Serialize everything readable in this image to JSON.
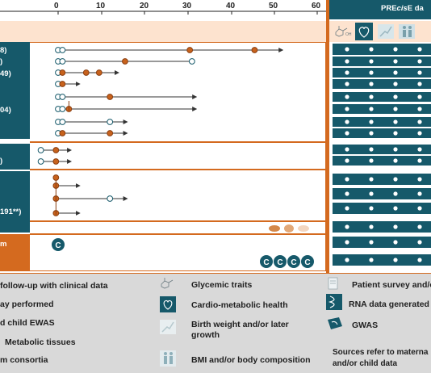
{
  "header": {
    "axis_ticks": [
      "0",
      "10",
      "20",
      "30",
      "40",
      "50",
      "60"
    ],
    "precise_title": "PRE",
    "precise_title_italic": "cis",
    "precise_title_rest": "E da"
  },
  "left_labels": [
    {
      "text": "8)"
    },
    {
      "text": ")"
    },
    {
      "text": "49)"
    },
    {
      "text": "04)"
    },
    {
      "text": ")"
    },
    {
      "text": "191**)"
    },
    {
      "text": "m"
    }
  ],
  "cohort_rows": [
    {
      "dots": [
        {
          "v": 0,
          "t": "open"
        },
        {
          "v": 1,
          "t": "open"
        },
        {
          "v": 30.5,
          "t": "filled"
        },
        {
          "v": 45.5,
          "t": "filled"
        }
      ],
      "end": 52,
      "arrow": true
    },
    {
      "dots": [
        {
          "v": 0,
          "t": "open"
        },
        {
          "v": 1,
          "t": "open"
        },
        {
          "v": 15.5,
          "t": "filled"
        },
        {
          "v": 31,
          "t": "open"
        }
      ],
      "end": 31,
      "arrow": false
    },
    {
      "dots": [
        {
          "v": 0,
          "t": "open"
        },
        {
          "v": 1,
          "t": "filled"
        },
        {
          "v": 6.5,
          "t": "filled"
        },
        {
          "v": 9.5,
          "t": "filled"
        }
      ],
      "end": 14,
      "arrow": true
    },
    {
      "dots": [
        {
          "v": 0,
          "t": "open"
        },
        {
          "v": 1,
          "t": "filled"
        }
      ],
      "end": 5,
      "arrow": true
    },
    {
      "dots": [
        {
          "v": 0,
          "t": "open"
        },
        {
          "v": 1,
          "t": "open"
        },
        {
          "v": 12,
          "t": "filled"
        }
      ],
      "end": 32,
      "arrow": true
    },
    {
      "dots": [
        {
          "v": 0,
          "t": "open"
        },
        {
          "v": 1,
          "t": "open"
        },
        {
          "v": 2.5,
          "t": "filled"
        }
      ],
      "end": 32,
      "arrow": true
    },
    {
      "dots": [
        {
          "v": 0,
          "t": "open"
        },
        {
          "v": 1,
          "t": "open"
        },
        {
          "v": 12,
          "t": "open"
        }
      ],
      "end": 16,
      "arrow": true
    },
    {
      "dots": [
        {
          "v": 0,
          "t": "open"
        },
        {
          "v": 1,
          "t": "filled"
        },
        {
          "v": 12,
          "t": "filled"
        }
      ],
      "end": 16,
      "arrow": true
    },
    {
      "dots": [
        {
          "v": -4,
          "t": "open"
        },
        {
          "v": -0.5,
          "t": "filled"
        }
      ],
      "end": 3,
      "arrow": true
    },
    {
      "dots": [
        {
          "v": -4,
          "t": "open"
        },
        {
          "v": -0.5,
          "t": "filled"
        }
      ],
      "end": 3,
      "arrow": true
    },
    {
      "dots": [
        {
          "v": -0.5,
          "t": "filled"
        }
      ],
      "end": 5,
      "arrow": true
    },
    {
      "dots": [
        {
          "v": -0.5,
          "t": "filled"
        },
        {
          "v": 12,
          "t": "open"
        }
      ],
      "end": 16,
      "arrow": true
    },
    {
      "dots": [
        {
          "v": -0.5,
          "t": "filled"
        }
      ],
      "end": 5,
      "arrow": true
    }
  ],
  "consortia_rows": [
    {
      "letters": [
        "C"
      ]
    },
    {
      "letters": [
        "C",
        "C",
        "C",
        "C"
      ]
    }
  ],
  "precise_checks_per_row": 4,
  "legend": {
    "left": [
      "follow-up with clinical data",
      "ay performed",
      "d child EWAS",
      "Metabolic tissues",
      "m consortia"
    ],
    "middle": [
      "Glycemic traits",
      "Cardio-metabolic health",
      "Birth  weight  and/or  later growth",
      "BMI and/or  body composition"
    ],
    "right": [
      "Patient survey and/o",
      "RNA data generated",
      "GWAS",
      "Sources refer to materna and/or child data"
    ]
  },
  "colors": {
    "teal": "#16596a",
    "orange": "#d46a1f",
    "dot_orange": "#c8621c",
    "peach": "#fde3cf",
    "gray": "#d9d9d9",
    "ink": "#1f1f1f"
  },
  "icons": [
    "glucose-icon",
    "heart-icon",
    "growth-icon",
    "body-icon",
    "survey-icon",
    "rna-icon",
    "gwas-icon",
    "organs-icon"
  ]
}
